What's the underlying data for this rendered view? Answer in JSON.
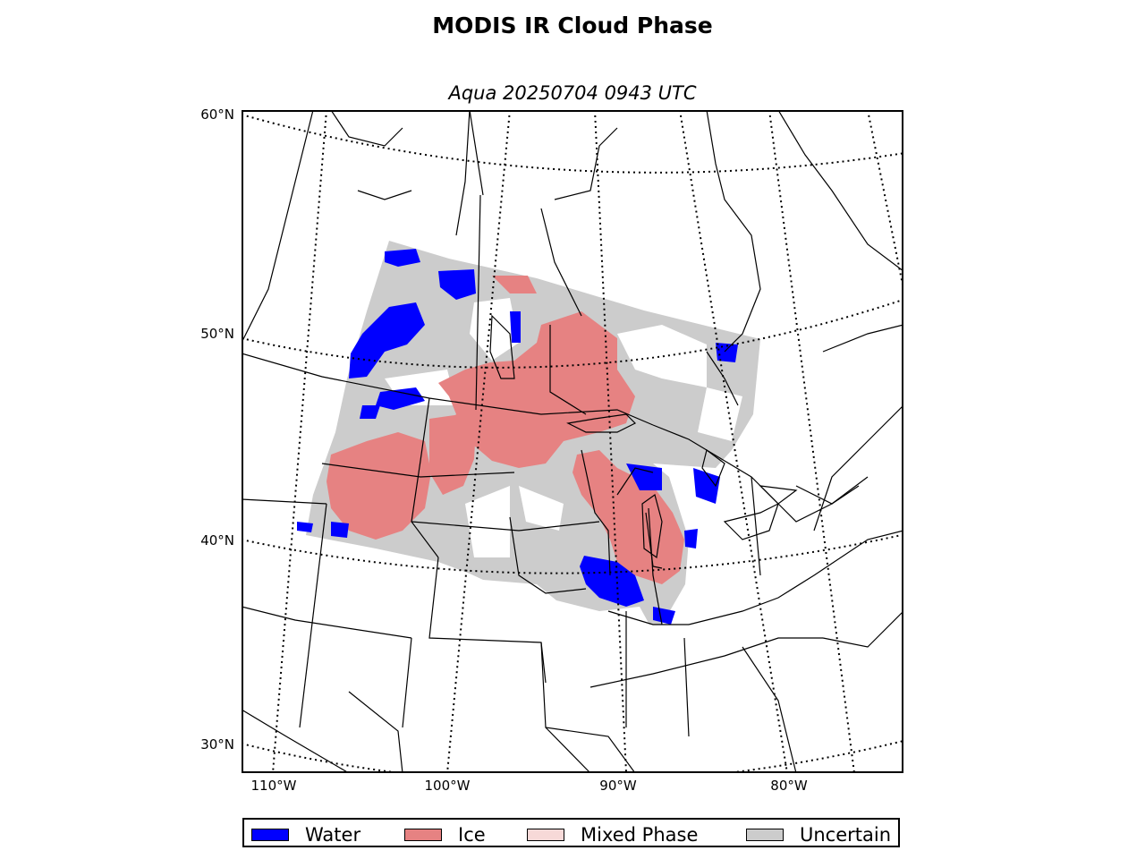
{
  "figure": {
    "title": "MODIS IR Cloud Phase",
    "subtitle": "Aqua 20250704 0943 UTC"
  },
  "map": {
    "lat_labels": [
      "60°N",
      "50°N",
      "40°N",
      "30°N"
    ],
    "lon_labels": [
      "110°W",
      "100°W",
      "90°W",
      "80°W"
    ],
    "gridline_style": "dotted",
    "projection": "conic"
  },
  "legend": {
    "items": [
      {
        "label": "Water",
        "color": "#0000ff"
      },
      {
        "label": "Ice",
        "color": "#e68282"
      },
      {
        "label": "Mixed Phase",
        "color": "#f7d9d8"
      },
      {
        "label": "Uncertain",
        "color": "#cccccc"
      }
    ]
  },
  "colors": {
    "water": "#0000ff",
    "ice": "#e68282",
    "mixed": "#f7d9d8",
    "uncertain": "#cccccc",
    "border": "#000000"
  }
}
